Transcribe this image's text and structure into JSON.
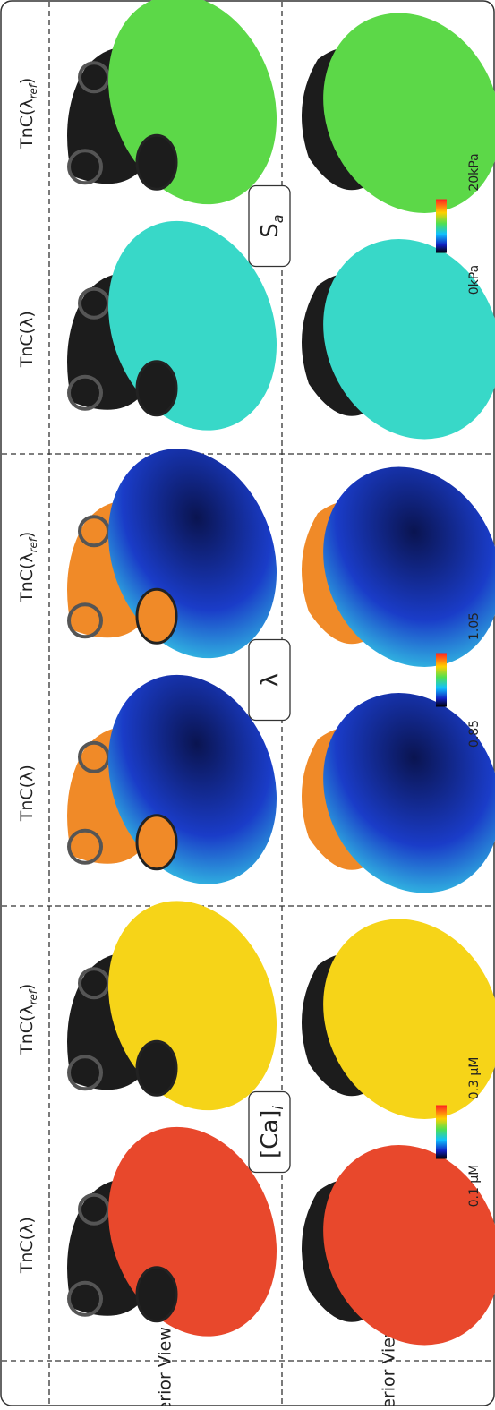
{
  "view_labels": [
    "Anterior View",
    "Posterior View"
  ],
  "panels": [
    {
      "columns": [
        {
          "base": "TnC(λ)"
        },
        {
          "base": "TnC(λ",
          "sub": "ref",
          "close": ")"
        }
      ],
      "quantity": {
        "base": "[Ca]",
        "sub": "i"
      },
      "colorbar": {
        "min": "0.1 µM",
        "max": "0.3 µM"
      }
    },
    {
      "columns": [
        {
          "base": "TnC(λ)"
        },
        {
          "base": "TnC(λ",
          "sub": "ref",
          "close": ")"
        }
      ],
      "quantity": {
        "base": "λ"
      },
      "colorbar": {
        "min": "0.85",
        "max": "1.05"
      }
    },
    {
      "columns": [
        {
          "base": "TnC(λ)"
        },
        {
          "base": "TnC(λ",
          "sub": "ref",
          "close": ")"
        }
      ],
      "quantity": {
        "base": "S",
        "sub": "a"
      },
      "colorbar": {
        "min": "0kPa",
        "max": "20kPa"
      }
    }
  ]
}
